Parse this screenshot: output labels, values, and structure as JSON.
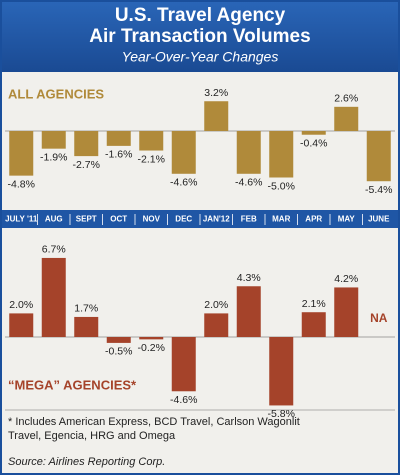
{
  "header": {
    "title_line1": "U.S. Travel Agency",
    "title_line2": "Air Transaction Volumes",
    "subtitle": "Year-Over-Year Changes"
  },
  "chart_data": [
    {
      "type": "bar",
      "title": "ALL AGENCIES",
      "color": "#b08a3a",
      "categories": [
        "JULY '11",
        "AUG",
        "SEPT",
        "OCT",
        "NOV",
        "DEC",
        "JAN'12",
        "FEB",
        "MAR",
        "APR",
        "MAY",
        "JUNE"
      ],
      "values": [
        -4.8,
        -1.9,
        -2.7,
        -1.6,
        -2.1,
        -4.6,
        3.2,
        -4.6,
        -5.0,
        -0.4,
        2.6,
        -5.4
      ],
      "value_labels": [
        "-4.8%",
        "-1.9%",
        "-2.7%",
        "-1.6%",
        "-2.1%",
        "-4.6%",
        "3.2%",
        "-4.6%",
        "-5.0%",
        "-0.4%",
        "2.6%",
        "-5.4%"
      ]
    },
    {
      "type": "bar",
      "title": "“MEGA” AGENCIES*",
      "color": "#a5432a",
      "values": [
        2.0,
        6.7,
        1.7,
        -0.5,
        -0.2,
        -4.6,
        2.0,
        4.3,
        -5.8,
        2.1,
        4.2,
        null
      ],
      "value_labels": [
        "2.0%",
        "6.7%",
        "1.7%",
        "-0.5%",
        "-0.2%",
        "-4.6%",
        "2.0%",
        "4.3%",
        "-5.8%",
        "2.1%",
        "4.2%",
        "NA"
      ]
    }
  ],
  "footnote": "* Includes American Express, BCD Travel, Carlson Wagonlit Travel, Egencia, HRG and Omega",
  "source": "Source: Airlines Reporting Corp."
}
